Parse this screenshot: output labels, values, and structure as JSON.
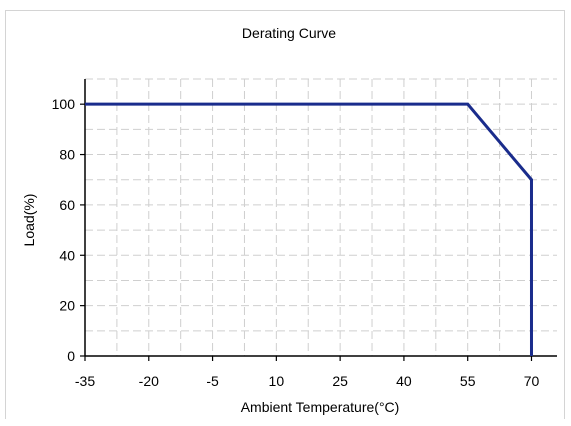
{
  "chart_data": {
    "type": "line",
    "title": "Derating Curve",
    "xlabel": "Ambient Temperature(°C)",
    "ylabel": "Load(%)",
    "x_ticks": [
      -35,
      -20,
      -5,
      10,
      25,
      40,
      55,
      70
    ],
    "y_ticks": [
      0,
      20,
      40,
      60,
      80,
      100
    ],
    "xlim": [
      -35,
      76
    ],
    "ylim": [
      0,
      110
    ],
    "grid": true,
    "series": [
      {
        "color": "#1a2c8c",
        "points": [
          {
            "x": -35,
            "y": 100
          },
          {
            "x": 55,
            "y": 100
          },
          {
            "x": 70,
            "y": 70
          },
          {
            "x": 70,
            "y": 0
          }
        ]
      }
    ]
  }
}
